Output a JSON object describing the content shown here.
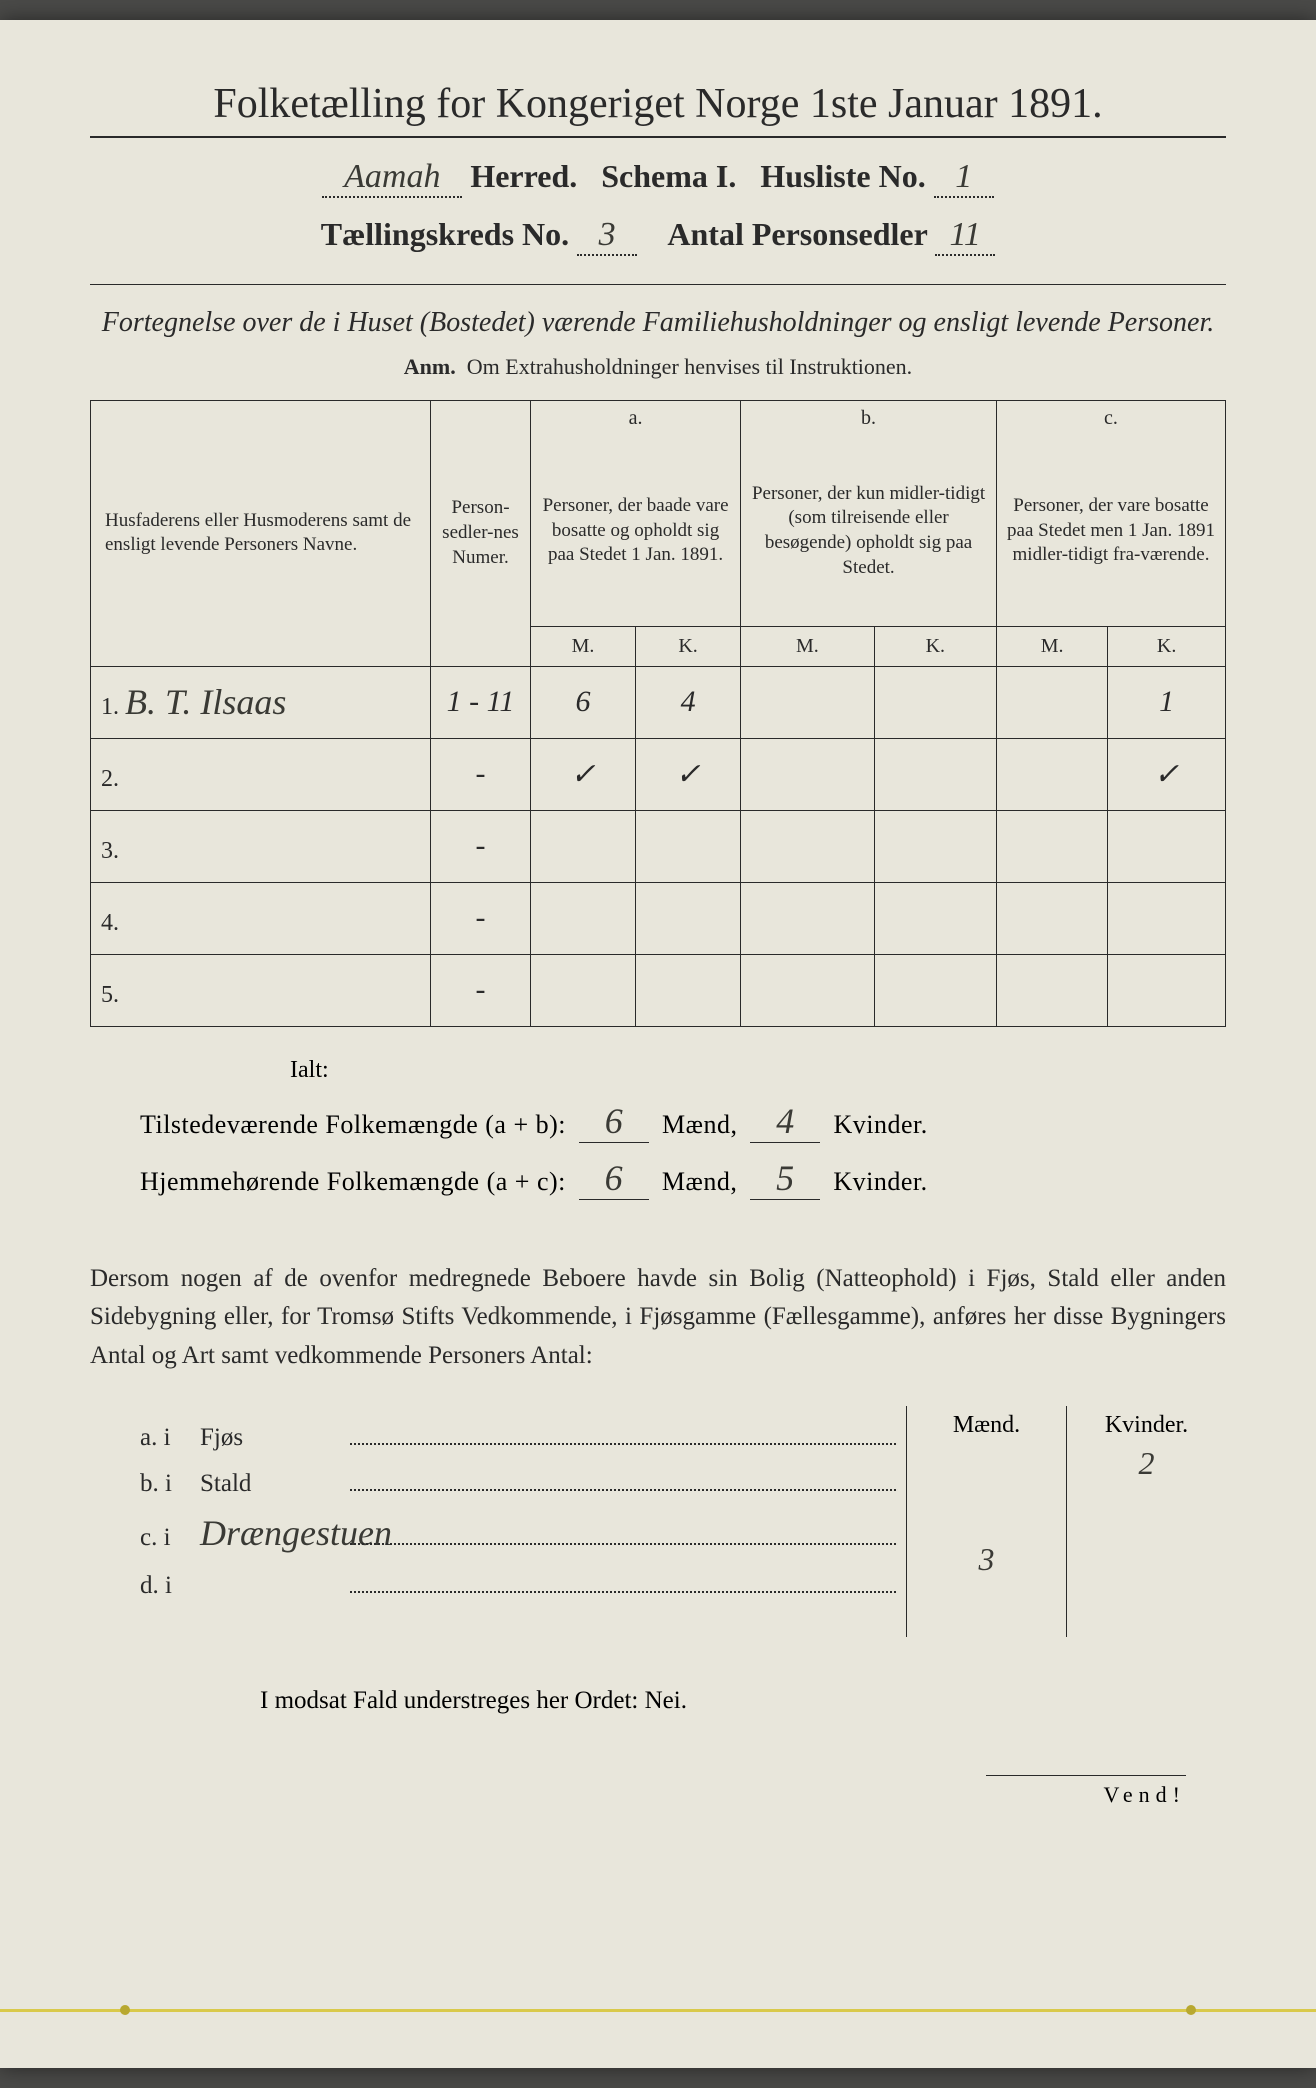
{
  "title": "Folketælling for Kongeriget Norge 1ste Januar 1891.",
  "header": {
    "herred": "Aamah",
    "herred_label": "Herred.",
    "schema_label": "Schema I.",
    "husliste_label": "Husliste No.",
    "husliste_no": "1",
    "kreds_label": "Tællingskreds No.",
    "kreds_no": "3",
    "antal_label": "Antal Personsedler",
    "antal": "11"
  },
  "subtitle": "Fortegnelse over de i Huset (Bostedet) værende Familiehusholdninger og ensligt levende Personer.",
  "anm_label": "Anm.",
  "anm_text": "Om Extrahusholdninger henvises til Instruktionen.",
  "table": {
    "col_name": "Husfaderens eller Husmoderens samt de ensligt levende Personers Navne.",
    "col_numer": "Person-sedler-nes Numer.",
    "col_a_label": "a.",
    "col_a": "Personer, der baade vare bosatte og opholdt sig paa Stedet 1 Jan. 1891.",
    "col_b_label": "b.",
    "col_b": "Personer, der kun midler-tidigt (som tilreisende eller besøgende) opholdt sig paa Stedet.",
    "col_c_label": "c.",
    "col_c": "Personer, der vare bosatte paa Stedet men 1 Jan. 1891 midler-tidigt fra-værende.",
    "m": "M.",
    "k": "K.",
    "rows": [
      {
        "n": "1.",
        "name": "B. T. Ilsaas",
        "numer": "1 - 11",
        "am": "6",
        "ak": "4",
        "bm": "",
        "bk": "",
        "cm": "",
        "ck": "1"
      },
      {
        "n": "2.",
        "name": "",
        "numer": "-",
        "am": "✓",
        "ak": "✓",
        "bm": "",
        "bk": "",
        "cm": "",
        "ck": "✓"
      },
      {
        "n": "3.",
        "name": "",
        "numer": "-",
        "am": "",
        "ak": "",
        "bm": "",
        "bk": "",
        "cm": "",
        "ck": ""
      },
      {
        "n": "4.",
        "name": "",
        "numer": "-",
        "am": "",
        "ak": "",
        "bm": "",
        "bk": "",
        "cm": "",
        "ck": ""
      },
      {
        "n": "5.",
        "name": "",
        "numer": "-",
        "am": "",
        "ak": "",
        "bm": "",
        "bk": "",
        "cm": "",
        "ck": ""
      }
    ]
  },
  "ialt": "Ialt:",
  "totals": {
    "line1_label": "Tilstedeværende Folkemængde (a + b):",
    "line1_m": "6",
    "line1_k": "4",
    "line2_label": "Hjemmehørende Folkemængde (a + c):",
    "line2_m": "6",
    "line2_k": "5",
    "maend": "Mænd,",
    "kvinder": "Kvinder."
  },
  "para": "Dersom nogen af de ovenfor medregnede Beboere havde sin Bolig (Natteophold) i Fjøs, Stald eller anden Sidebygning eller, for Tromsø Stifts Vedkommende, i Fjøsgamme (Fællesgamme), anføres her disse Bygningers Antal og Art samt vedkommende Personers Antal:",
  "bldg": {
    "mk_m": "Mænd.",
    "mk_k": "Kvinder.",
    "rows": [
      {
        "lbl": "a.  i",
        "txt": "Fjøs",
        "m": "",
        "k": "2"
      },
      {
        "lbl": "b.  i",
        "txt": "Stald",
        "m": "",
        "k": ""
      },
      {
        "lbl": "c.  i",
        "txt": "Drængestuen",
        "m": "3",
        "k": ""
      },
      {
        "lbl": "d.  i",
        "txt": "",
        "m": "",
        "k": ""
      }
    ]
  },
  "nei": "I modsat Fald understreges her Ordet: Nei.",
  "vend": "Vend!"
}
